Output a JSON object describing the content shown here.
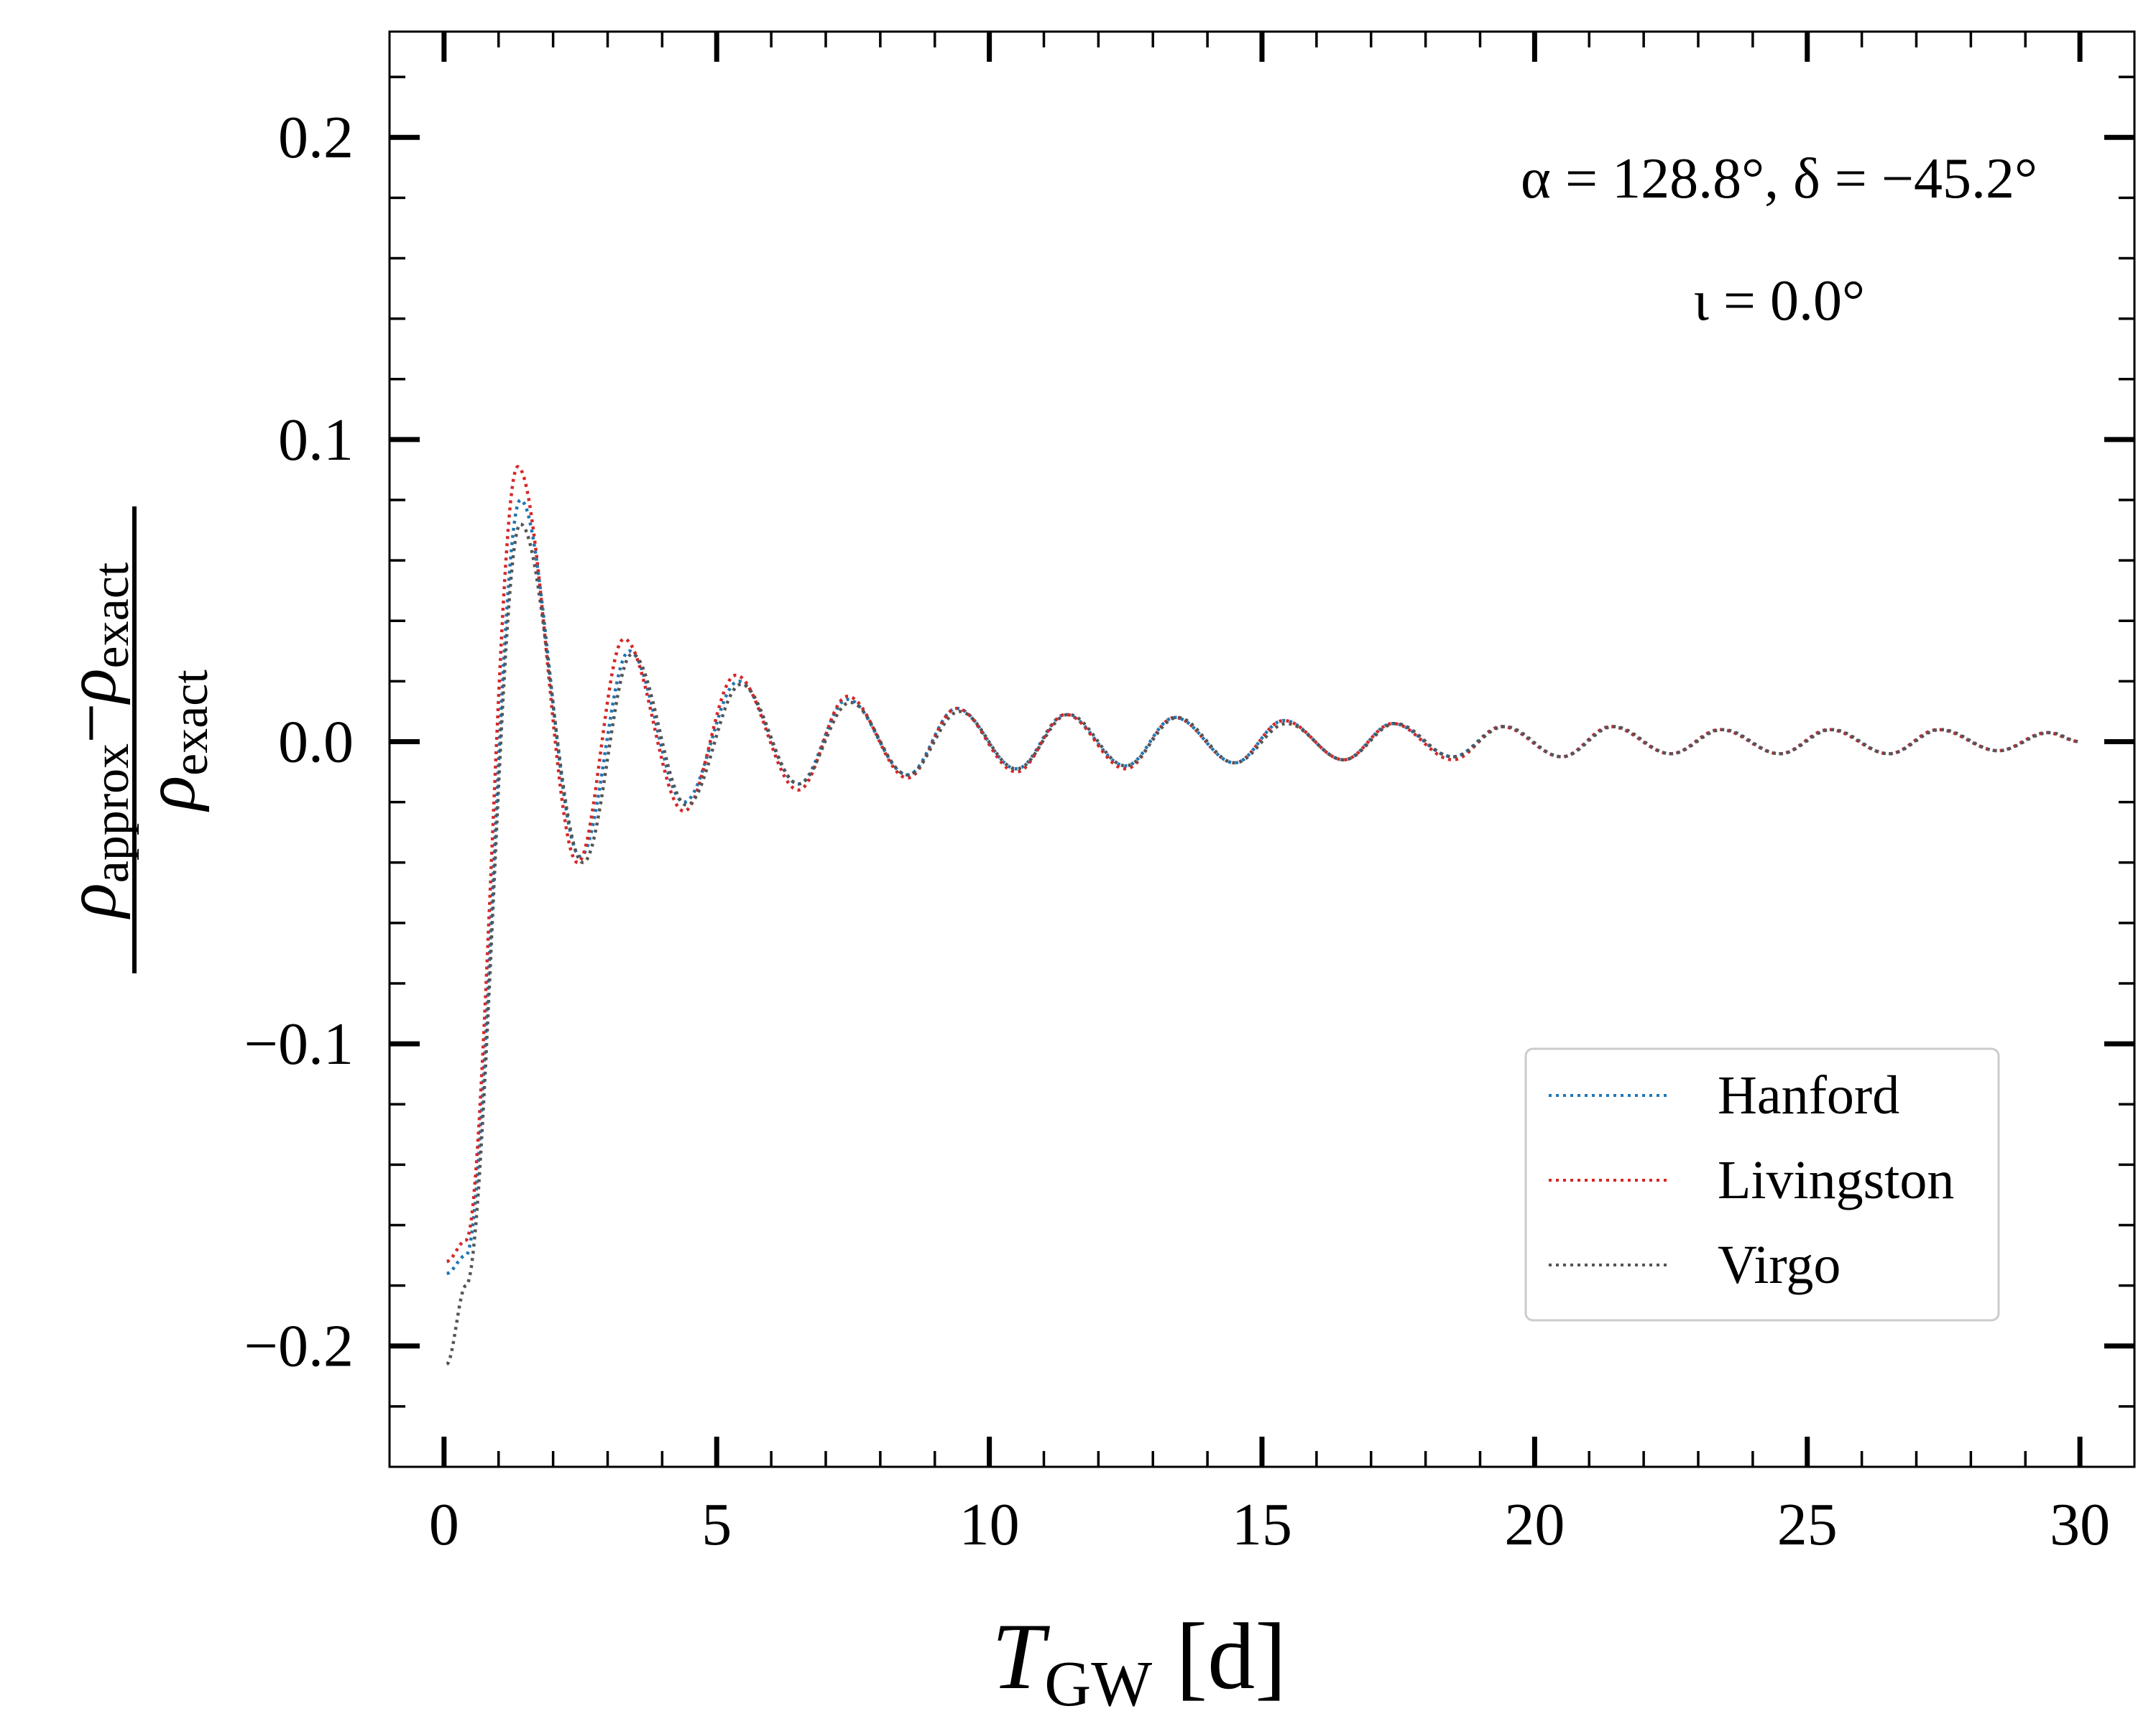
{
  "chart_data": {
    "type": "line",
    "title": "",
    "xlabel": {
      "main": "T",
      "sub": "GW",
      "unit": " [d]"
    },
    "ylabel": {
      "numerator": {
        "rho": "ρ",
        "sub1": "approx",
        "minus": "−",
        "rho2": "ρ",
        "sub2": "exact"
      },
      "denominator": {
        "rho": "ρ",
        "sub": "exact"
      }
    },
    "xlim": [
      -1,
      31
    ],
    "ylim": [
      -0.24,
      0.235
    ],
    "x_ticks": [
      0,
      5,
      10,
      15,
      20,
      25,
      30
    ],
    "x_tick_labels": [
      "0",
      "5",
      "10",
      "15",
      "20",
      "25",
      "30"
    ],
    "y_ticks": [
      -0.2,
      -0.1,
      0.0,
      0.1,
      0.2
    ],
    "y_tick_labels": [
      "−0.2",
      "−0.1",
      "0.0",
      "0.1",
      "0.2"
    ],
    "annotations": [
      {
        "id": "sky-position",
        "text": "α = 128.8°, δ = −45.2°"
      },
      {
        "id": "inclination",
        "text": "ι = 0.0°"
      }
    ],
    "legend_position": "lower-right",
    "model": "Damped oscillation: y(T) = A·exp(−T/τ)·cos(2π(T − T_peak)/P) + b/(T+1)^1.6 · cos(2π(T−T_peak)/P), sampled densely; series values listed below at key extrema.",
    "series": [
      {
        "name": "Hanford",
        "color": "#1f77b4",
        "key_points": [
          [
            0.05,
            -0.176
          ],
          [
            0.4,
            -0.17
          ],
          [
            1.4,
            0.08
          ],
          [
            2.5,
            -0.038
          ],
          [
            3.4,
            0.03
          ],
          [
            4.4,
            -0.02
          ],
          [
            5.4,
            0.02
          ],
          [
            6.5,
            -0.014
          ],
          [
            7.4,
            0.014
          ],
          [
            8.5,
            -0.011
          ],
          [
            9.4,
            0.011
          ],
          [
            10.5,
            -0.009
          ],
          [
            11.4,
            0.009
          ],
          [
            12.5,
            -0.008
          ],
          [
            13.4,
            0.008
          ],
          [
            14.5,
            -0.007
          ],
          [
            15.4,
            0.007
          ],
          [
            16.5,
            -0.006
          ],
          [
            17.4,
            0.006
          ],
          [
            18.5,
            -0.005
          ],
          [
            19.4,
            0.005
          ],
          [
            20.5,
            -0.005
          ],
          [
            21.4,
            0.005
          ],
          [
            22.5,
            -0.004
          ],
          [
            23.4,
            0.004
          ],
          [
            24.5,
            -0.004
          ],
          [
            25.4,
            0.004
          ],
          [
            26.5,
            -0.004
          ],
          [
            27.4,
            0.004
          ],
          [
            28.5,
            -0.003
          ],
          [
            29.4,
            0.003
          ],
          [
            30.0,
            0.0
          ]
        ]
      },
      {
        "name": "Livingston",
        "color": "#d62728",
        "key_points": [
          [
            0.05,
            -0.172
          ],
          [
            0.4,
            -0.165
          ],
          [
            1.35,
            0.091
          ],
          [
            2.45,
            -0.04
          ],
          [
            3.3,
            0.034
          ],
          [
            4.4,
            -0.023
          ],
          [
            5.35,
            0.022
          ],
          [
            6.5,
            -0.016
          ],
          [
            7.4,
            0.015
          ],
          [
            8.5,
            -0.012
          ],
          [
            9.4,
            0.011
          ],
          [
            10.5,
            -0.01
          ],
          [
            11.4,
            0.009
          ],
          [
            12.5,
            -0.009
          ],
          [
            13.4,
            0.008
          ],
          [
            14.5,
            -0.007
          ],
          [
            15.4,
            0.007
          ],
          [
            16.5,
            -0.006
          ],
          [
            17.4,
            0.006
          ],
          [
            18.5,
            -0.006
          ],
          [
            19.4,
            0.005
          ],
          [
            20.5,
            -0.005
          ],
          [
            21.4,
            0.005
          ],
          [
            22.5,
            -0.004
          ],
          [
            23.4,
            0.004
          ],
          [
            24.5,
            -0.004
          ],
          [
            25.4,
            0.004
          ],
          [
            26.5,
            -0.004
          ],
          [
            27.4,
            0.004
          ],
          [
            28.5,
            -0.003
          ],
          [
            29.4,
            0.003
          ],
          [
            30.0,
            0.0
          ]
        ]
      },
      {
        "name": "Virgo",
        "color": "#555555",
        "key_points": [
          [
            0.05,
            -0.206
          ],
          [
            0.4,
            -0.18
          ],
          [
            1.4,
            0.072
          ],
          [
            2.55,
            -0.04
          ],
          [
            3.45,
            0.029
          ],
          [
            4.45,
            -0.021
          ],
          [
            5.45,
            0.019
          ],
          [
            6.5,
            -0.014
          ],
          [
            7.45,
            0.013
          ],
          [
            8.5,
            -0.011
          ],
          [
            9.45,
            0.01
          ],
          [
            10.5,
            -0.009
          ],
          [
            11.45,
            0.009
          ],
          [
            12.5,
            -0.008
          ],
          [
            13.45,
            0.008
          ],
          [
            14.5,
            -0.007
          ],
          [
            15.45,
            0.006
          ],
          [
            16.5,
            -0.006
          ],
          [
            17.45,
            0.006
          ],
          [
            18.5,
            -0.005
          ],
          [
            19.45,
            0.005
          ],
          [
            20.5,
            -0.005
          ],
          [
            21.45,
            0.005
          ],
          [
            22.5,
            -0.004
          ],
          [
            23.45,
            0.004
          ],
          [
            24.5,
            -0.004
          ],
          [
            25.45,
            0.004
          ],
          [
            26.5,
            -0.004
          ],
          [
            27.45,
            0.004
          ],
          [
            28.5,
            -0.003
          ],
          [
            29.45,
            0.003
          ],
          [
            30.0,
            0.0
          ]
        ]
      }
    ]
  }
}
